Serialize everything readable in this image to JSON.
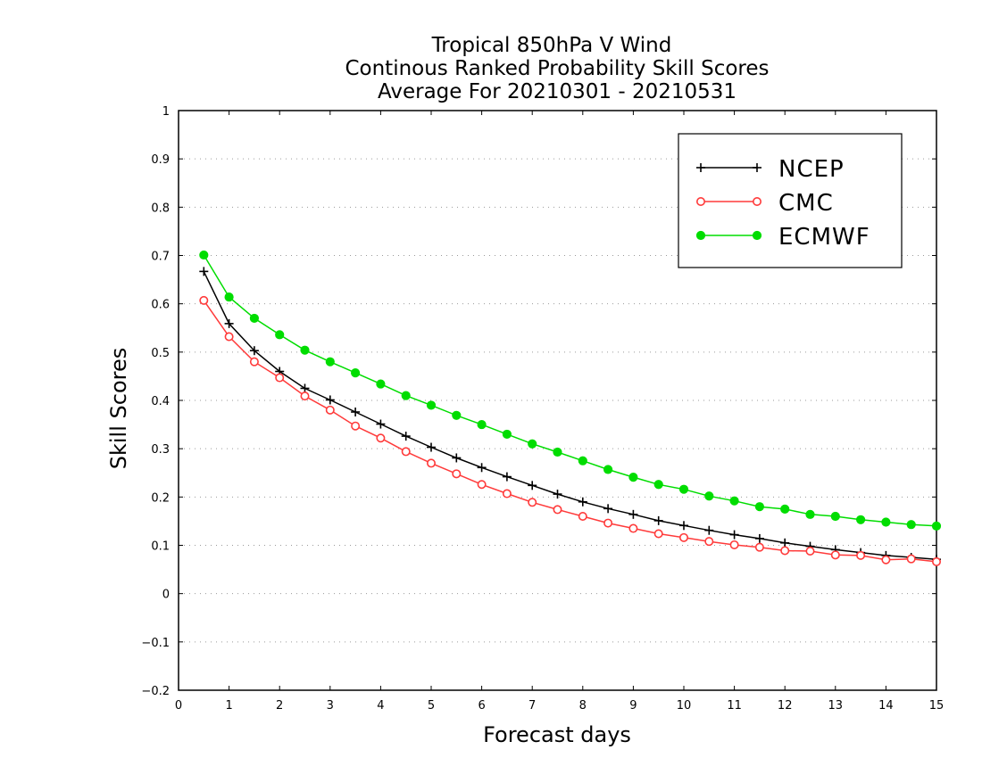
{
  "chart_data": {
    "type": "line",
    "title": [
      "Tropical 850hPa V Wind",
      "Continous Ranked Probability Skill Scores",
      "Average For 20210301 - 20210531"
    ],
    "xlabel": "Forecast days",
    "ylabel": "Skill Scores",
    "xlim": [
      0,
      15
    ],
    "ylim": [
      -0.2,
      1
    ],
    "xticks": [
      0,
      1,
      2,
      3,
      4,
      5,
      6,
      7,
      8,
      9,
      10,
      11,
      12,
      13,
      14,
      15
    ],
    "xtick_labels": [
      "0",
      "1",
      "2",
      "3",
      "4",
      "5",
      "6",
      "7",
      "8",
      "9",
      "10",
      "11",
      "12",
      "13",
      "14",
      "15"
    ],
    "yticks": [
      -0.2,
      -0.1,
      0,
      0.1,
      0.2,
      0.3,
      0.4,
      0.5,
      0.6,
      0.7,
      0.8,
      0.9,
      1
    ],
    "ytick_labels": [
      "−0.2",
      "−0.1",
      "0",
      "0.1",
      "0.2",
      "0.3",
      "0.4",
      "0.5",
      "0.6",
      "0.7",
      "0.8",
      "0.9",
      "1"
    ],
    "grid": "horizontal dotted",
    "legend_position": "top-right",
    "x": [
      0.5,
      1,
      1.5,
      2,
      2.5,
      3,
      3.5,
      4,
      4.5,
      5,
      5.5,
      6,
      6.5,
      7,
      7.5,
      8,
      8.5,
      9,
      9.5,
      10,
      10.5,
      11,
      11.5,
      12,
      12.5,
      13,
      13.5,
      14,
      14.5,
      15
    ],
    "series": [
      {
        "name": "NCEP",
        "color": "#000000",
        "marker": "plus",
        "values": [
          0.667,
          0.559,
          0.503,
          0.46,
          0.425,
          0.401,
          0.376,
          0.351,
          0.326,
          0.303,
          0.281,
          0.261,
          0.242,
          0.224,
          0.206,
          0.19,
          0.176,
          0.164,
          0.151,
          0.141,
          0.131,
          0.122,
          0.114,
          0.105,
          0.098,
          0.091,
          0.085,
          0.079,
          0.075,
          0.071
        ]
      },
      {
        "name": "CMC",
        "color": "#ff3a3a",
        "marker": "open-circle",
        "values": [
          0.607,
          0.532,
          0.48,
          0.447,
          0.409,
          0.38,
          0.347,
          0.322,
          0.294,
          0.27,
          0.248,
          0.226,
          0.207,
          0.189,
          0.174,
          0.16,
          0.146,
          0.135,
          0.124,
          0.116,
          0.108,
          0.101,
          0.096,
          0.089,
          0.088,
          0.08,
          0.079,
          0.07,
          0.072,
          0.066
        ]
      },
      {
        "name": "ECMWF",
        "color": "#00dd00",
        "marker": "filled-circle",
        "values": [
          0.701,
          0.614,
          0.57,
          0.536,
          0.504,
          0.48,
          0.457,
          0.434,
          0.41,
          0.39,
          0.369,
          0.35,
          0.33,
          0.31,
          0.293,
          0.275,
          0.257,
          0.241,
          0.226,
          0.216,
          0.202,
          0.192,
          0.18,
          0.175,
          0.164,
          0.16,
          0.153,
          0.148,
          0.143,
          0.14
        ]
      }
    ]
  }
}
